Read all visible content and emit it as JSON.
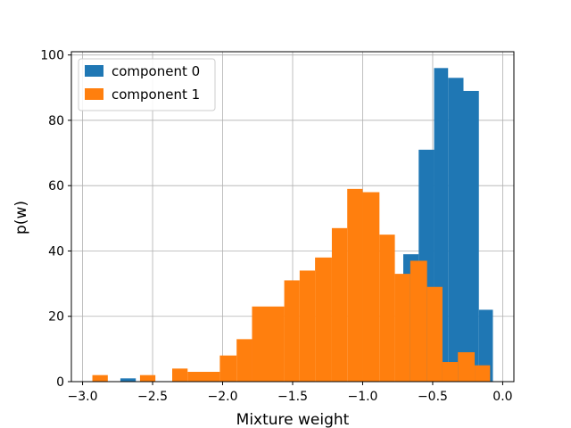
{
  "chart_data": {
    "type": "bar",
    "title": "",
    "xlabel": "Mixture weight",
    "ylabel": "p(w)",
    "xlim": [
      -3.08,
      0.08
    ],
    "ylim": [
      0,
      101
    ],
    "xticks": [
      -3.0,
      -2.5,
      -2.0,
      -1.5,
      -1.0,
      -0.5,
      0.0
    ],
    "xtick_labels": [
      "−3.0",
      "−2.5",
      "−2.0",
      "−1.5",
      "−1.0",
      "−0.5",
      "0.0"
    ],
    "yticks": [
      0,
      20,
      40,
      60,
      80,
      100
    ],
    "ytick_labels": [
      "0",
      "20",
      "40",
      "60",
      "80",
      "100"
    ],
    "grid": true,
    "legend_position": "top-left",
    "series": [
      {
        "name": "component 0",
        "color": "#1f77b4",
        "bins": [
          {
            "x0": -2.73,
            "x1": -2.62,
            "value": 1
          },
          {
            "x0": -0.71,
            "x1": -0.6,
            "value": 39
          },
          {
            "x0": -0.6,
            "x1": -0.49,
            "value": 71
          },
          {
            "x0": -0.49,
            "x1": -0.39,
            "value": 96
          },
          {
            "x0": -0.39,
            "x1": -0.28,
            "value": 93
          },
          {
            "x0": -0.28,
            "x1": -0.17,
            "value": 89
          },
          {
            "x0": -0.17,
            "x1": -0.07,
            "value": 22
          }
        ]
      },
      {
        "name": "component 1",
        "color": "#ff7f0e",
        "bins": [
          {
            "x0": -2.93,
            "x1": -2.82,
            "value": 2
          },
          {
            "x0": -2.59,
            "x1": -2.48,
            "value": 2
          },
          {
            "x0": -2.36,
            "x1": -2.25,
            "value": 4
          },
          {
            "x0": -2.25,
            "x1": -2.02,
            "value": 3
          },
          {
            "x0": -2.02,
            "x1": -1.9,
            "value": 8
          },
          {
            "x0": -1.9,
            "x1": -1.79,
            "value": 13
          },
          {
            "x0": -1.79,
            "x1": -1.56,
            "value": 23
          },
          {
            "x0": -1.56,
            "x1": -1.45,
            "value": 31
          },
          {
            "x0": -1.45,
            "x1": -1.34,
            "value": 34
          },
          {
            "x0": -1.34,
            "x1": -1.22,
            "value": 38
          },
          {
            "x0": -1.22,
            "x1": -1.11,
            "value": 47
          },
          {
            "x0": -1.11,
            "x1": -1.0,
            "value": 59
          },
          {
            "x0": -1.0,
            "x1": -0.88,
            "value": 58
          },
          {
            "x0": -0.88,
            "x1": -0.77,
            "value": 45
          },
          {
            "x0": -0.77,
            "x1": -0.66,
            "value": 33
          },
          {
            "x0": -0.66,
            "x1": -0.54,
            "value": 37
          },
          {
            "x0": -0.54,
            "x1": -0.43,
            "value": 29
          },
          {
            "x0": -0.43,
            "x1": -0.32,
            "value": 6
          },
          {
            "x0": -0.32,
            "x1": -0.2,
            "value": 9
          },
          {
            "x0": -0.2,
            "x1": -0.09,
            "value": 5
          }
        ]
      }
    ]
  }
}
